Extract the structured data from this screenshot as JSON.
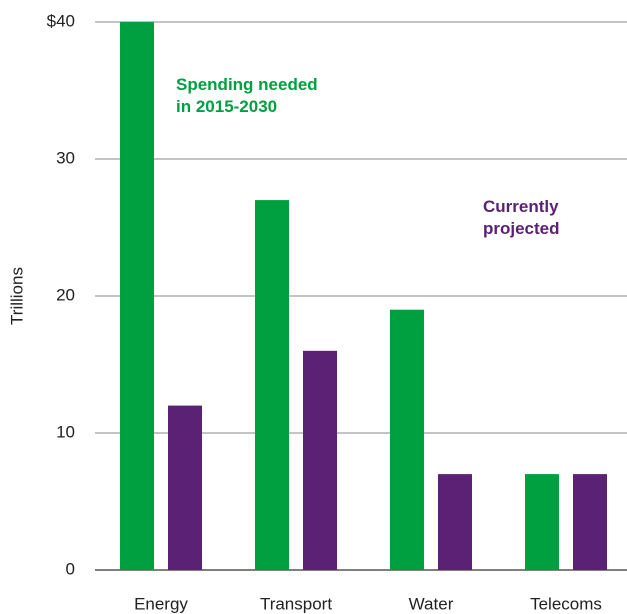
{
  "chart_data": {
    "type": "bar",
    "y_label": "Trillions",
    "categories": [
      "Energy",
      "Transport",
      "Water",
      "Telecoms"
    ],
    "series": [
      {
        "name": "Spending needed in 2015-2030",
        "color": "#00a040",
        "values": [
          40,
          27,
          19,
          7
        ]
      },
      {
        "name": "Currently projected",
        "color": "#5b2175",
        "values": [
          12,
          16,
          7,
          7
        ]
      }
    ],
    "ylim": [
      0,
      40
    ],
    "yticks": [
      0,
      10,
      20,
      30,
      {
        "value": 40,
        "label": "$40"
      }
    ],
    "grid": true
  }
}
